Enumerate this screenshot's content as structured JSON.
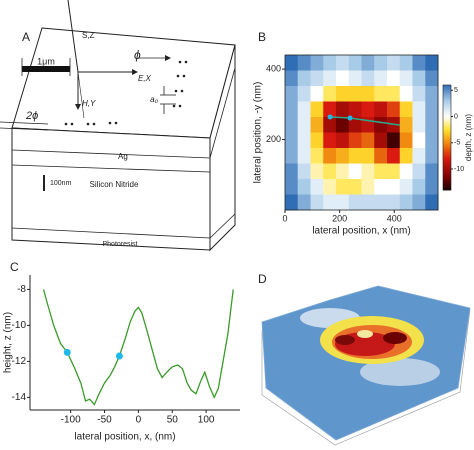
{
  "diagram": {
    "panel_label": "A",
    "scale_bar": "1μm",
    "beam": "S,Z",
    "phi": "ϕ",
    "e_axis": "E,X",
    "h_axis": "H,Y",
    "two_phi": "2ϕ",
    "spacing": "a₀",
    "metal": "Ag",
    "thickness": "100nm",
    "membrane": "Silicon Nitride",
    "substrate": "Photoresist"
  },
  "surface": {
    "panel_label": "D"
  },
  "chart_data": [
    {
      "type": "heatmap",
      "panel_label": "B",
      "xlabel": "lateral position, x (nm)",
      "ylabel": "lateral position, -y (nm)",
      "colorbar_label": "depth, z (nm)",
      "xlim": [
        0,
        560
      ],
      "ylim": [
        0,
        440
      ],
      "xticks": [
        0,
        200,
        400
      ],
      "yticks": [
        200,
        400
      ],
      "clim": [
        -14,
        6
      ],
      "cticks": [
        5,
        0,
        -5,
        -10
      ],
      "x": [
        23,
        70,
        117,
        163,
        210,
        257,
        303,
        350,
        397,
        443,
        490,
        537
      ],
      "y": [
        418,
        374,
        330,
        286,
        242,
        198,
        154,
        110,
        66,
        22
      ],
      "values": [
        [
          6,
          5,
          4,
          3,
          2,
          3,
          4,
          3,
          2,
          3,
          5,
          6
        ],
        [
          5,
          3,
          2,
          1,
          0,
          1,
          2,
          1,
          0,
          1,
          3,
          5
        ],
        [
          4,
          2,
          0,
          -2,
          -3,
          -3,
          -3,
          -2,
          -2,
          0,
          2,
          4
        ],
        [
          4,
          1,
          -3,
          -8,
          -10,
          -9,
          -8,
          -9,
          -7,
          -3,
          1,
          4
        ],
        [
          4,
          1,
          -4,
          -10,
          -12,
          -10,
          -9,
          -11,
          -10,
          -4,
          1,
          4
        ],
        [
          4,
          1,
          -3,
          -8,
          -9,
          -7,
          -6,
          -10,
          -13,
          -5,
          0,
          4
        ],
        [
          4,
          1,
          -2,
          -5,
          -4,
          -3,
          -3,
          -6,
          -8,
          -3,
          1,
          4
        ],
        [
          5,
          2,
          -1,
          -2,
          -1,
          0,
          -1,
          -2,
          -2,
          0,
          2,
          5
        ],
        [
          5,
          3,
          1,
          -1,
          -2,
          -2,
          -1,
          0,
          0,
          1,
          3,
          5
        ],
        [
          6,
          4,
          2,
          1,
          1,
          2,
          2,
          2,
          2,
          3,
          4,
          6
        ]
      ],
      "trace": {
        "x": [
          165,
          238,
          421
        ],
        "y": [
          264,
          261,
          241
        ],
        "color": "#2aa98a",
        "marker_color": "#1fb8e8"
      }
    },
    {
      "type": "line",
      "panel_label": "C",
      "xlabel": "lateral position, x, (nm)",
      "ylabel": "height, z (nm)",
      "xlim": [
        -160,
        150
      ],
      "ylim": [
        -14.7,
        -7.2
      ],
      "xticks": [
        -100,
        -50,
        0,
        50,
        100
      ],
      "yticks": [
        -8,
        -10,
        -12,
        -14
      ],
      "x": [
        -140,
        -135,
        -125,
        -115,
        -105,
        -95,
        -85,
        -78,
        -72,
        -65,
        -58,
        -50,
        -42,
        -35,
        -28,
        -20,
        -12,
        -5,
        0,
        5,
        12,
        20,
        28,
        35,
        42,
        50,
        58,
        65,
        72,
        78,
        85,
        92,
        98,
        105,
        112,
        118,
        125,
        132,
        140
      ],
      "series": [
        {
          "color": "#3a9a2a",
          "values": [
            -8.0,
            -8.7,
            -10,
            -11,
            -11.5,
            -12.3,
            -13.2,
            -14.2,
            -14.1,
            -14.4,
            -13.8,
            -13.2,
            -12.8,
            -12.3,
            -11.7,
            -10.8,
            -9.8,
            -9.2,
            -9.0,
            -9.3,
            -10.2,
            -11.3,
            -12.4,
            -12.9,
            -12.6,
            -12.3,
            -12.2,
            -12.4,
            -13.2,
            -13.6,
            -13.8,
            -13.1,
            -12.6,
            -13.4,
            -14.0,
            -13.5,
            -12.0,
            -10.5,
            -8.0
          ]
        }
      ],
      "markers": {
        "x": [
          -105,
          -28
        ],
        "values": [
          -11.5,
          -11.7
        ],
        "color": "#1fb8e8"
      }
    }
  ]
}
